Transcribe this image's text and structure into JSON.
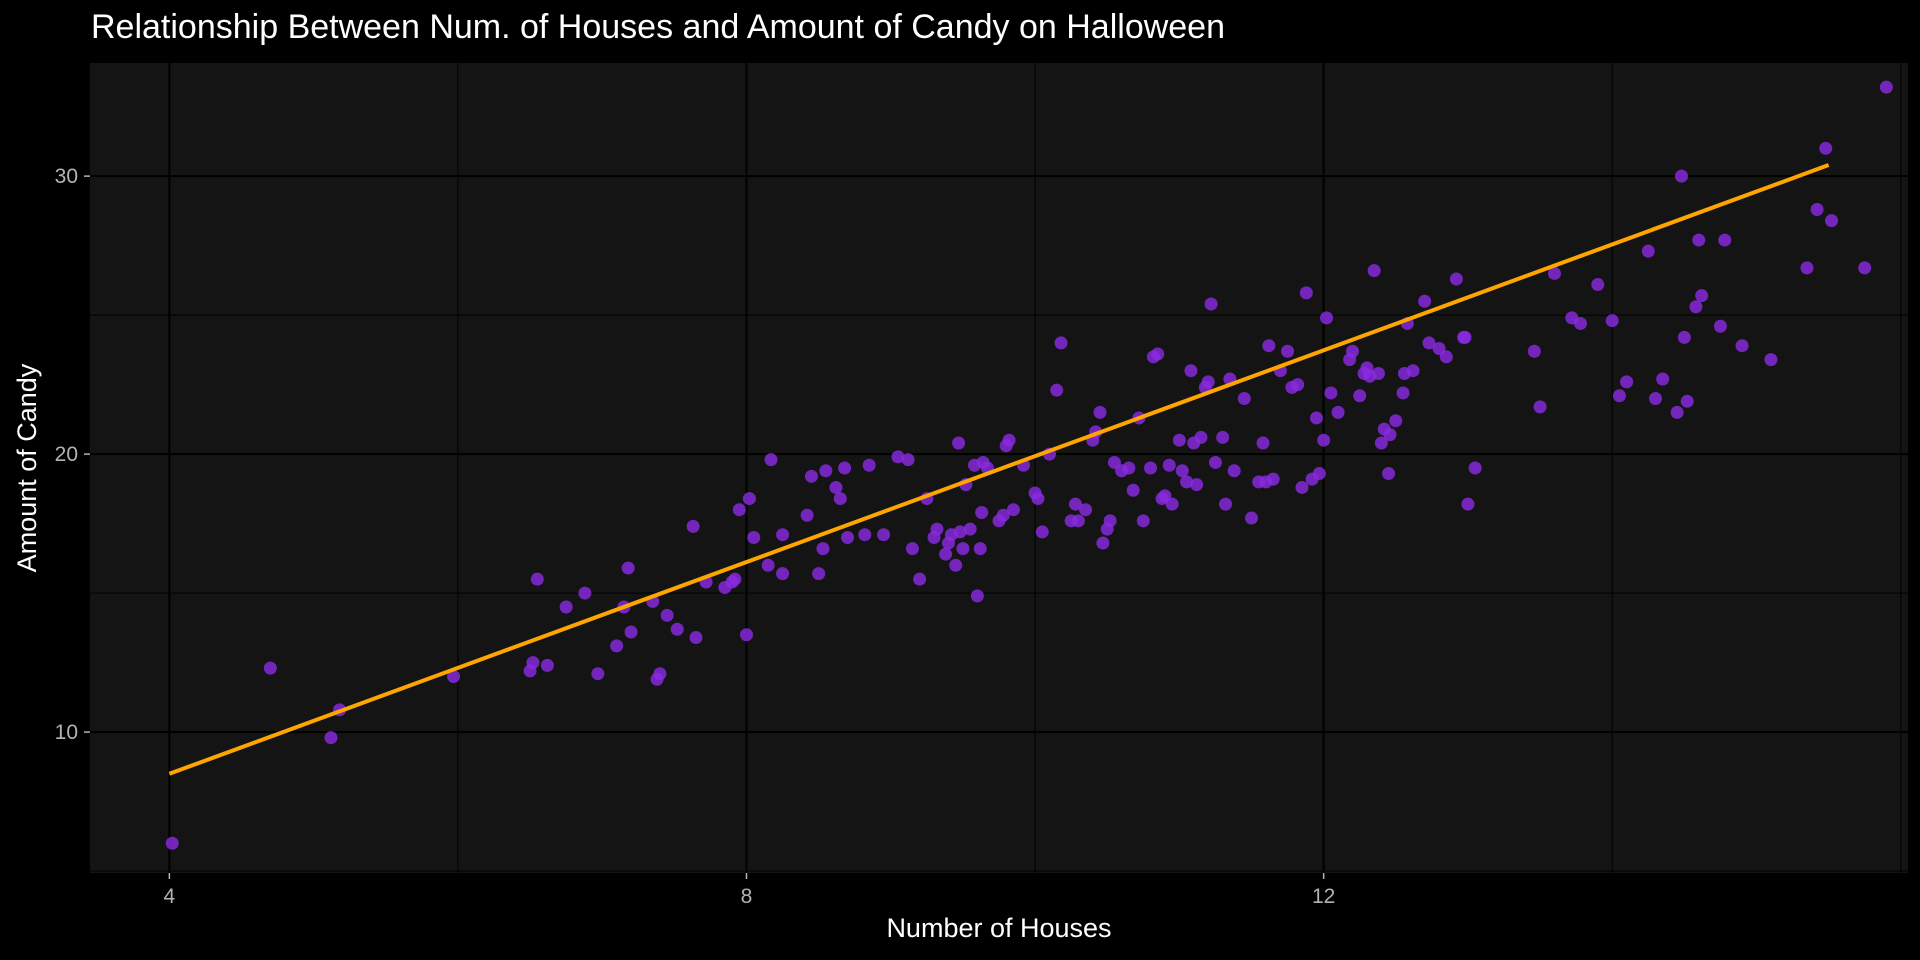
{
  "chart_data": {
    "type": "scatter",
    "title": "Relationship Between Num. of Houses and Amount of Candy on Halloween",
    "xlabel": "Number of Houses",
    "ylabel": "Amount of Candy",
    "xlim": [
      3.45,
      16.05
    ],
    "ylim": [
      4.93,
      34.07
    ],
    "x_ticks": [
      4,
      8,
      12
    ],
    "y_ticks": [
      10,
      20,
      30
    ],
    "grid": true,
    "legend": "none",
    "colors": {
      "background": "#000000",
      "panel": "#141414",
      "grid": "#000000",
      "points": "#8a2be2",
      "fit_line": "#ffa500"
    },
    "fit_line": {
      "x": [
        4.0,
        15.5
      ],
      "y": [
        8.5,
        30.4
      ]
    },
    "points": [
      [
        4.02,
        6.0
      ],
      [
        4.7,
        12.3
      ],
      [
        5.12,
        9.8
      ],
      [
        5.18,
        10.8
      ],
      [
        5.97,
        12.0
      ],
      [
        6.5,
        12.2
      ],
      [
        6.55,
        15.5
      ],
      [
        6.52,
        12.5
      ],
      [
        6.62,
        12.4
      ],
      [
        6.75,
        14.5
      ],
      [
        6.88,
        15.0
      ],
      [
        6.97,
        12.1
      ],
      [
        7.1,
        13.1
      ],
      [
        7.15,
        14.5
      ],
      [
        7.18,
        15.9
      ],
      [
        7.2,
        13.6
      ],
      [
        7.35,
        14.7
      ],
      [
        7.38,
        11.9
      ],
      [
        7.4,
        12.1
      ],
      [
        7.45,
        14.2
      ],
      [
        7.52,
        13.7
      ],
      [
        7.63,
        17.4
      ],
      [
        7.65,
        13.4
      ],
      [
        7.72,
        15.4
      ],
      [
        7.85,
        15.2
      ],
      [
        7.9,
        15.4
      ],
      [
        7.92,
        15.5
      ],
      [
        7.95,
        18.0
      ],
      [
        8.0,
        13.5
      ],
      [
        8.02,
        18.4
      ],
      [
        8.05,
        17.0
      ],
      [
        8.15,
        16.0
      ],
      [
        8.17,
        19.8
      ],
      [
        8.25,
        15.7
      ],
      [
        8.25,
        17.1
      ],
      [
        8.42,
        17.8
      ],
      [
        8.45,
        19.2
      ],
      [
        8.5,
        15.7
      ],
      [
        8.53,
        16.6
      ],
      [
        8.55,
        19.4
      ],
      [
        8.62,
        18.8
      ],
      [
        8.65,
        18.4
      ],
      [
        8.68,
        19.5
      ],
      [
        8.7,
        17.0
      ],
      [
        8.82,
        17.1
      ],
      [
        8.85,
        19.6
      ],
      [
        8.95,
        17.1
      ],
      [
        9.05,
        19.9
      ],
      [
        9.12,
        19.8
      ],
      [
        9.15,
        16.6
      ],
      [
        9.2,
        15.5
      ],
      [
        9.25,
        18.4
      ],
      [
        9.3,
        17.0
      ],
      [
        9.32,
        17.3
      ],
      [
        9.38,
        16.4
      ],
      [
        9.4,
        16.8
      ],
      [
        9.42,
        17.1
      ],
      [
        9.45,
        16.0
      ],
      [
        9.47,
        20.4
      ],
      [
        9.48,
        17.2
      ],
      [
        9.5,
        16.6
      ],
      [
        9.52,
        18.9
      ],
      [
        9.55,
        17.3
      ],
      [
        9.58,
        19.6
      ],
      [
        9.6,
        14.9
      ],
      [
        9.62,
        16.6
      ],
      [
        9.63,
        17.9
      ],
      [
        9.64,
        19.7
      ],
      [
        9.67,
        19.5
      ],
      [
        9.75,
        17.6
      ],
      [
        9.78,
        17.8
      ],
      [
        9.8,
        20.3
      ],
      [
        9.82,
        20.5
      ],
      [
        9.85,
        18.0
      ],
      [
        9.92,
        19.6
      ],
      [
        10.0,
        18.6
      ],
      [
        10.02,
        18.4
      ],
      [
        10.05,
        17.2
      ],
      [
        10.1,
        20.0
      ],
      [
        10.15,
        22.3
      ],
      [
        10.18,
        24.0
      ],
      [
        10.25,
        17.6
      ],
      [
        10.28,
        18.2
      ],
      [
        10.3,
        17.6
      ],
      [
        10.35,
        18.0
      ],
      [
        10.4,
        20.5
      ],
      [
        10.42,
        20.8
      ],
      [
        10.45,
        21.5
      ],
      [
        10.47,
        16.8
      ],
      [
        10.5,
        17.3
      ],
      [
        10.52,
        17.6
      ],
      [
        10.55,
        19.7
      ],
      [
        10.6,
        19.4
      ],
      [
        10.65,
        19.5
      ],
      [
        10.68,
        18.7
      ],
      [
        10.72,
        21.3
      ],
      [
        10.75,
        17.6
      ],
      [
        10.8,
        19.5
      ],
      [
        10.82,
        23.5
      ],
      [
        10.85,
        23.6
      ],
      [
        10.88,
        18.4
      ],
      [
        10.9,
        18.5
      ],
      [
        10.95,
        18.2
      ],
      [
        11.0,
        20.5
      ],
      [
        11.02,
        19.4
      ],
      [
        11.05,
        19.0
      ],
      [
        11.08,
        23.0
      ],
      [
        11.1,
        20.4
      ],
      [
        11.12,
        18.9
      ],
      [
        11.15,
        20.6
      ],
      [
        11.18,
        22.4
      ],
      [
        11.2,
        22.6
      ],
      [
        11.22,
        25.4
      ],
      [
        11.25,
        19.7
      ],
      [
        11.3,
        20.6
      ],
      [
        11.32,
        18.2
      ],
      [
        11.35,
        22.7
      ],
      [
        11.38,
        19.4
      ],
      [
        11.45,
        22.0
      ],
      [
        11.5,
        17.7
      ],
      [
        11.55,
        19.0
      ],
      [
        11.58,
        20.4
      ],
      [
        11.62,
        23.9
      ],
      [
        11.65,
        19.1
      ],
      [
        11.7,
        23.0
      ],
      [
        11.75,
        23.7
      ],
      [
        11.78,
        22.4
      ],
      [
        11.82,
        22.5
      ],
      [
        11.85,
        18.8
      ],
      [
        11.88,
        25.8
      ],
      [
        11.92,
        19.1
      ],
      [
        11.95,
        21.3
      ],
      [
        11.97,
        19.3
      ],
      [
        12.0,
        20.5
      ],
      [
        12.02,
        24.9
      ],
      [
        12.05,
        22.2
      ],
      [
        12.1,
        21.5
      ],
      [
        12.18,
        23.4
      ],
      [
        12.2,
        23.7
      ],
      [
        12.25,
        22.1
      ],
      [
        12.28,
        22.9
      ],
      [
        12.3,
        23.1
      ],
      [
        12.32,
        22.8
      ],
      [
        12.35,
        26.6
      ],
      [
        12.38,
        22.9
      ],
      [
        12.4,
        20.4
      ],
      [
        12.42,
        20.9
      ],
      [
        12.45,
        19.3
      ],
      [
        12.46,
        20.7
      ],
      [
        12.5,
        21.2
      ],
      [
        12.55,
        22.2
      ],
      [
        12.56,
        22.9
      ],
      [
        12.58,
        24.7
      ],
      [
        12.62,
        23.0
      ],
      [
        12.7,
        25.5
      ],
      [
        12.73,
        24.0
      ],
      [
        12.8,
        23.8
      ],
      [
        12.85,
        23.5
      ],
      [
        12.92,
        26.3
      ],
      [
        12.98,
        24.2
      ],
      [
        13.05,
        19.5
      ],
      [
        13.0,
        18.2
      ],
      [
        13.5,
        21.7
      ],
      [
        13.6,
        26.5
      ],
      [
        13.72,
        24.9
      ],
      [
        13.78,
        24.7
      ],
      [
        13.9,
        26.1
      ],
      [
        14.0,
        24.8
      ],
      [
        14.05,
        22.1
      ],
      [
        14.1,
        22.6
      ],
      [
        14.25,
        27.3
      ],
      [
        14.3,
        22.0
      ],
      [
        14.35,
        22.7
      ],
      [
        14.45,
        21.5
      ],
      [
        14.48,
        30.0
      ],
      [
        14.5,
        24.2
      ],
      [
        14.52,
        21.9
      ],
      [
        14.58,
        25.3
      ],
      [
        14.6,
        27.7
      ],
      [
        14.62,
        25.7
      ],
      [
        14.75,
        24.6
      ],
      [
        14.78,
        27.7
      ],
      [
        14.9,
        23.9
      ],
      [
        15.1,
        23.4
      ],
      [
        15.35,
        26.7
      ],
      [
        15.42,
        28.8
      ],
      [
        15.52,
        28.4
      ],
      [
        15.75,
        26.7
      ],
      [
        15.9,
        33.2
      ],
      [
        15.48,
        31.0
      ],
      [
        13.46,
        23.7
      ],
      [
        12.97,
        24.2
      ],
      [
        11.6,
        19.0
      ],
      [
        10.93,
        19.6
      ]
    ]
  }
}
